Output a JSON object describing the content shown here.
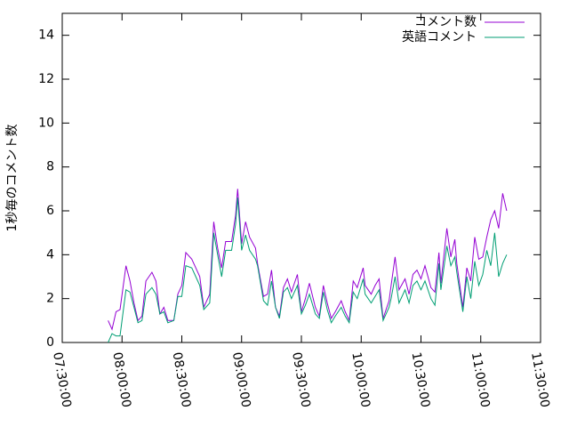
{
  "chart_data": {
    "type": "line",
    "ylabel": "1秒毎のコメント数",
    "x": [
      "07:53:00",
      "07:55:00",
      "07:57:00",
      "07:59:00",
      "08:02:00",
      "08:04:00",
      "08:06:00",
      "08:08:00",
      "08:10:00",
      "08:12:00",
      "08:15:00",
      "08:17:00",
      "08:19:00",
      "08:21:00",
      "08:23:00",
      "08:26:00",
      "08:28:00",
      "08:30:00",
      "08:32:00",
      "08:35:00",
      "08:37:00",
      "08:39:00",
      "08:41:00",
      "08:44:00",
      "08:46:00",
      "08:48:00",
      "08:50:00",
      "08:52:00",
      "08:55:00",
      "08:57:00",
      "08:58:00",
      "09:00:00",
      "09:02:00",
      "09:04:00",
      "09:07:00",
      "09:08:00",
      "09:11:00",
      "09:13:00",
      "09:15:00",
      "09:17:00",
      "09:19:00",
      "09:21:00",
      "09:23:00",
      "09:25:00",
      "09:28:00",
      "09:30:00",
      "09:32:00",
      "09:34:00",
      "09:37:00",
      "09:39:00",
      "09:41:00",
      "09:43:00",
      "09:45:00",
      "09:47:00",
      "09:50:00",
      "09:52:00",
      "09:54:00",
      "09:56:00",
      "09:58:00",
      "10:01:00",
      "10:02:00",
      "10:05:00",
      "10:07:00",
      "10:09:00",
      "10:11:00",
      "10:14:00",
      "10:15:00",
      "10:17:00",
      "10:19:00",
      "10:22:00",
      "10:24:00",
      "10:26:00",
      "10:28:00",
      "10:30:00",
      "10:32:00",
      "10:35:00",
      "10:37:00",
      "10:39:00",
      "10:40:00",
      "10:43:00",
      "10:45:00",
      "10:47:00",
      "10:48:00",
      "10:51:00",
      "10:53:00",
      "10:55:00",
      "10:57:00",
      "10:59:00",
      "11:01:00",
      "11:03:00",
      "11:05:00",
      "11:07:00",
      "11:09:00",
      "11:11:00",
      "11:13:00"
    ],
    "series": [
      {
        "name": "コメント数",
        "color": "#9400d3",
        "values": [
          1.0,
          0.6,
          1.4,
          1.5,
          3.5,
          2.8,
          1.8,
          1.0,
          1.2,
          2.8,
          3.2,
          2.8,
          1.3,
          1.6,
          1.0,
          1.0,
          2.2,
          2.6,
          4.1,
          3.8,
          3.4,
          3.0,
          1.6,
          2.2,
          5.5,
          4.3,
          3.4,
          4.6,
          4.6,
          5.8,
          7.0,
          4.5,
          5.5,
          4.8,
          4.3,
          3.6,
          2.1,
          2.2,
          3.3,
          1.6,
          1.2,
          2.5,
          2.9,
          2.3,
          3.1,
          1.4,
          2.0,
          2.7,
          1.6,
          1.2,
          2.6,
          1.8,
          1.1,
          1.4,
          1.9,
          1.4,
          1.0,
          2.8,
          2.5,
          3.4,
          2.6,
          2.2,
          2.6,
          2.9,
          1.1,
          1.9,
          2.6,
          3.9,
          2.4,
          2.9,
          2.2,
          3.1,
          3.3,
          2.9,
          3.5,
          2.5,
          2.3,
          4.1,
          2.7,
          5.2,
          3.9,
          4.7,
          3.6,
          1.6,
          3.4,
          2.8,
          4.8,
          3.8,
          3.9,
          4.8,
          5.6,
          6.0,
          5.2,
          6.8,
          6.0
        ]
      },
      {
        "name": "英語コメント",
        "color": "#009e73",
        "values": [
          0.0,
          0.4,
          0.3,
          0.3,
          2.4,
          2.3,
          1.6,
          0.9,
          1.0,
          2.2,
          2.5,
          2.2,
          1.3,
          1.4,
          0.9,
          1.0,
          2.1,
          2.1,
          3.5,
          3.4,
          3.0,
          2.6,
          1.5,
          1.8,
          5.0,
          4.0,
          3.0,
          4.2,
          4.2,
          5.4,
          6.6,
          4.2,
          4.9,
          4.2,
          3.8,
          3.5,
          1.9,
          1.7,
          2.8,
          1.6,
          1.1,
          2.3,
          2.5,
          2.0,
          2.6,
          1.3,
          1.7,
          2.2,
          1.3,
          1.1,
          2.3,
          1.5,
          0.9,
          1.2,
          1.6,
          1.2,
          0.9,
          2.3,
          2.0,
          2.9,
          2.2,
          1.8,
          2.1,
          2.4,
          1.0,
          1.6,
          2.0,
          3.0,
          1.8,
          2.4,
          1.8,
          2.6,
          2.8,
          2.4,
          2.8,
          2.0,
          1.7,
          3.6,
          2.4,
          4.4,
          3.5,
          3.9,
          3.2,
          1.4,
          3.0,
          2.0,
          3.7,
          2.6,
          3.1,
          4.2,
          3.5,
          5.0,
          3.0,
          3.6,
          4.0
        ]
      }
    ],
    "xlim": [
      "07:30:00",
      "11:30:00"
    ],
    "xticks": [
      "07:30:00",
      "08:00:00",
      "08:30:00",
      "09:00:00",
      "09:30:00",
      "10:00:00",
      "10:30:00",
      "11:00:00",
      "11:30:00"
    ],
    "ylim": [
      0,
      15
    ],
    "yticks": [
      0,
      2,
      4,
      6,
      8,
      10,
      12,
      14
    ],
    "legend": "top-right"
  }
}
